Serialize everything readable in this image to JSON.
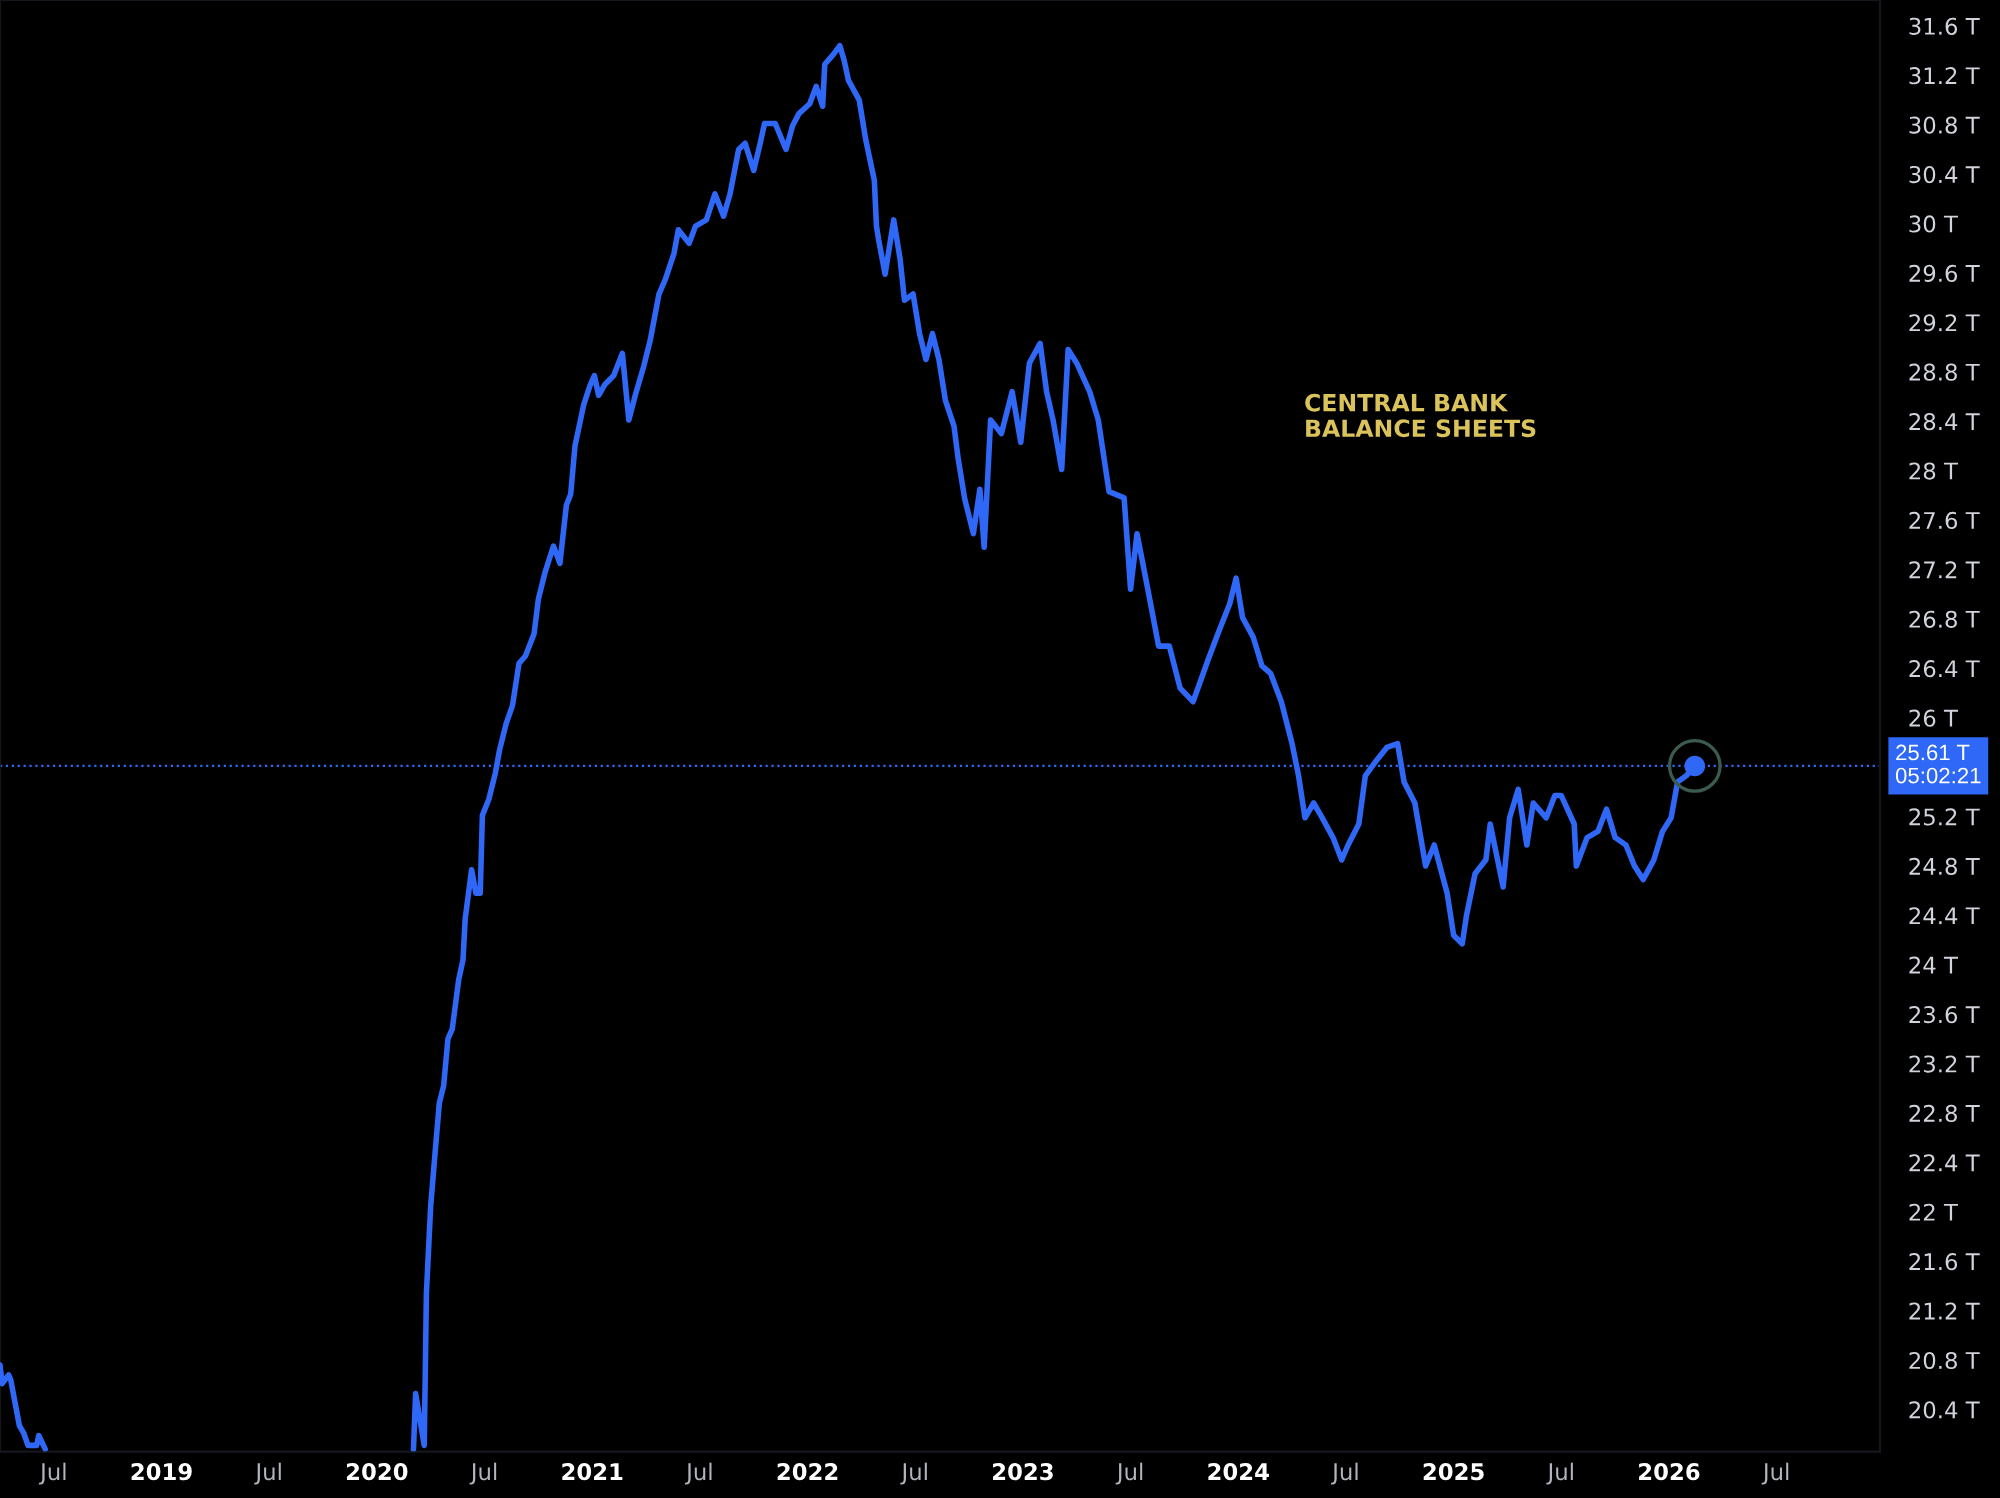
{
  "chart_data": {
    "type": "line",
    "title": "CENTRAL BANK\nBALANCE SHEETS",
    "xlim": [
      2018.25,
      2026.98
    ],
    "ylim": [
      20.06,
      31.81
    ],
    "xticks": [
      {
        "value": 2018.5,
        "label": "Jul"
      },
      2019,
      {
        "value": 2019.5,
        "label": "Jul"
      },
      2020,
      {
        "value": 2020.5,
        "label": "Jul"
      },
      2021,
      {
        "value": 2021.5,
        "label": "Jul"
      },
      2022,
      {
        "value": 2022.5,
        "label": "Jul"
      },
      2023,
      {
        "value": 2023.5,
        "label": "Jul"
      },
      2024,
      {
        "value": 2024.5,
        "label": "Jul"
      },
      2025,
      {
        "value": 2025.5,
        "label": "Jul"
      },
      2026,
      {
        "value": 2026.5,
        "label": "Jul"
      }
    ],
    "yticks": [
      {
        "value": 20.4,
        "label": "20.4 T"
      },
      {
        "value": 20.8,
        "label": "20.8 T"
      },
      {
        "value": 21.2,
        "label": "21.2 T"
      },
      {
        "value": 21.6,
        "label": "21.6 T"
      },
      {
        "value": 22,
        "label": "22 T"
      },
      {
        "value": 22.4,
        "label": "22.4 T"
      },
      {
        "value": 22.8,
        "label": "22.8 T"
      },
      {
        "value": 23.2,
        "label": "23.2 T"
      },
      {
        "value": 23.6,
        "label": "23.6 T"
      },
      {
        "value": 24,
        "label": "24 T"
      },
      {
        "value": 24.4,
        "label": "24.4 T"
      },
      {
        "value": 24.8,
        "label": "24.8 T"
      },
      {
        "value": 25.2,
        "label": "25.2 T"
      },
      {
        "value": 26,
        "label": "26 T"
      },
      {
        "value": 26.4,
        "label": "26.4 T"
      },
      {
        "value": 26.8,
        "label": "26.8 T"
      },
      {
        "value": 27.2,
        "label": "27.2 T"
      },
      {
        "value": 27.6,
        "label": "27.6 T"
      },
      {
        "value": 28,
        "label": "28 T"
      },
      {
        "value": 28.4,
        "label": "28.4 T"
      },
      {
        "value": 28.8,
        "label": "28.8 T"
      },
      {
        "value": 29.2,
        "label": "29.2 T"
      },
      {
        "value": 29.6,
        "label": "29.6 T"
      },
      {
        "value": 30,
        "label": "30 T"
      },
      {
        "value": 30.4,
        "label": "30.4 T"
      },
      {
        "value": 30.8,
        "label": "30.8 T"
      },
      {
        "value": 31.2,
        "label": "31.2 T"
      },
      {
        "value": 31.6,
        "label": "31.6 T"
      }
    ],
    "ref_lines": [
      {
        "axis": "y",
        "value": 25.61,
        "label": "25.61 T\n05:02:21",
        "color": "#2f68f6",
        "line_style": "dotted"
      }
    ],
    "series": [
      {
        "color": "#2f68f6",
        "line_style": "solid",
        "x": [
          2018.25,
          2018.26,
          2018.29,
          2018.3,
          2018.34,
          2018.36,
          2018.38,
          2018.42,
          2018.43,
          2018.46,
          2019.3,
          2020.17,
          2020.18,
          2020.2,
          2020.22,
          2020.23,
          2020.25,
          2020.27,
          2020.29,
          2020.31,
          2020.33,
          2020.35,
          2020.38,
          2020.4,
          2020.41,
          2020.44,
          2020.46,
          2020.48,
          2020.49,
          2020.52,
          2020.55,
          2020.57,
          2020.6,
          2020.63,
          2020.66,
          2020.69,
          2020.73,
          2020.75,
          2020.78,
          2020.82,
          2020.85,
          2020.88,
          2020.9,
          2020.92,
          2020.96,
          2020.99,
          2021.01,
          2021.03,
          2021.06,
          2021.1,
          2021.14,
          2021.17,
          2021.2,
          2021.24,
          2021.27,
          2021.31,
          2021.34,
          2021.38,
          2021.4,
          2021.45,
          2021.48,
          2021.53,
          2021.57,
          2021.61,
          2021.64,
          2021.68,
          2021.71,
          2021.75,
          2021.78,
          2021.8,
          2021.85,
          2021.9,
          2021.93,
          2021.96,
          2022.01,
          2022.04,
          2022.07,
          2022.08,
          2022.12,
          2022.15,
          2022.17,
          2022.19,
          2022.24,
          2022.27,
          2022.31,
          2022.32,
          2022.33,
          2022.36,
          2022.4,
          2022.43,
          2022.45,
          2022.49,
          2022.52,
          2022.55,
          2022.58,
          2022.61,
          2022.64,
          2022.68,
          2022.7,
          2022.73,
          2022.77,
          2022.8,
          2022.82,
          2022.85,
          2022.9,
          2022.95,
          2022.99,
          2023.03,
          2023.08,
          2023.11,
          2023.14,
          2023.18,
          2023.21,
          2023.25,
          2023.31,
          2023.35,
          2023.4,
          2023.47,
          2023.5,
          2023.53,
          2023.58,
          2023.63,
          2023.68,
          2023.73,
          2023.79,
          2023.86,
          2023.91,
          2023.96,
          2023.99,
          2024.02,
          2024.07,
          2024.11,
          2024.15,
          2024.2,
          2024.25,
          2024.28,
          2024.31,
          2024.35,
          2024.39,
          2024.44,
          2024.48,
          2024.51,
          2024.56,
          2024.59,
          2024.64,
          2024.69,
          2024.74,
          2024.77,
          2024.82,
          2024.87,
          2024.91,
          2024.97,
          2025.0,
          2025.04,
          2025.06,
          2025.1,
          2025.15,
          2025.17,
          2025.23,
          2025.26,
          2025.3,
          2025.34,
          2025.37,
          2025.43,
          2025.47,
          2025.5,
          2025.56,
          2025.57,
          2025.62,
          2025.67,
          2025.71,
          2025.75,
          2025.8,
          2025.84,
          2025.88,
          2025.93,
          2025.97,
          2026.01,
          2026.04,
          2026.08,
          2026.12
        ],
        "values": [
          20.76,
          20.61,
          20.68,
          20.64,
          20.27,
          20.21,
          20.11,
          20.11,
          20.19,
          20.08,
          null,
          20.08,
          20.53,
          20.32,
          20.11,
          21.34,
          22.05,
          22.47,
          22.88,
          23.02,
          23.4,
          23.48,
          23.88,
          24.04,
          24.37,
          24.77,
          24.58,
          24.58,
          25.21,
          25.34,
          25.55,
          25.74,
          25.95,
          26.1,
          26.44,
          26.5,
          26.68,
          26.96,
          27.17,
          27.39,
          27.25,
          27.72,
          27.81,
          28.2,
          28.53,
          28.69,
          28.77,
          28.61,
          28.7,
          28.77,
          28.95,
          28.41,
          28.61,
          28.85,
          29.06,
          29.43,
          29.55,
          29.76,
          29.95,
          29.84,
          29.98,
          30.03,
          30.24,
          30.06,
          30.24,
          30.6,
          30.65,
          30.43,
          30.65,
          30.81,
          30.81,
          30.6,
          30.79,
          30.89,
          30.97,
          31.11,
          30.95,
          31.29,
          31.37,
          31.44,
          31.32,
          31.16,
          31.0,
          30.68,
          30.35,
          29.98,
          29.87,
          29.59,
          30.03,
          29.71,
          29.38,
          29.43,
          29.11,
          28.9,
          29.11,
          28.9,
          28.57,
          28.36,
          28.09,
          27.77,
          27.49,
          27.85,
          27.38,
          28.41,
          28.3,
          28.64,
          28.23,
          28.87,
          29.03,
          28.64,
          28.41,
          28.01,
          28.98,
          28.87,
          28.64,
          28.41,
          27.83,
          27.78,
          27.04,
          27.49,
          27.04,
          26.58,
          26.58,
          26.24,
          26.13,
          26.47,
          26.7,
          26.92,
          27.13,
          26.81,
          26.65,
          26.42,
          26.36,
          26.13,
          25.79,
          25.53,
          25.19,
          25.31,
          25.19,
          25.03,
          24.85,
          24.97,
          25.14,
          25.53,
          25.65,
          25.76,
          25.79,
          25.48,
          25.31,
          24.8,
          24.97,
          24.58,
          24.24,
          24.17,
          24.4,
          24.74,
          24.85,
          25.14,
          24.63,
          25.19,
          25.42,
          24.97,
          25.31,
          25.19,
          25.37,
          25.37,
          25.14,
          24.8,
          25.03,
          25.08,
          25.26,
          25.03,
          24.97,
          24.8,
          24.69,
          24.85,
          25.08,
          25.19,
          25.48,
          25.53,
          25.61
        ]
      },
      {
        "type": "scatter",
        "marker": "circle",
        "color": "#2f68f6",
        "x": [
          2026.12
        ],
        "values": [
          25.61
        ]
      }
    ]
  }
}
